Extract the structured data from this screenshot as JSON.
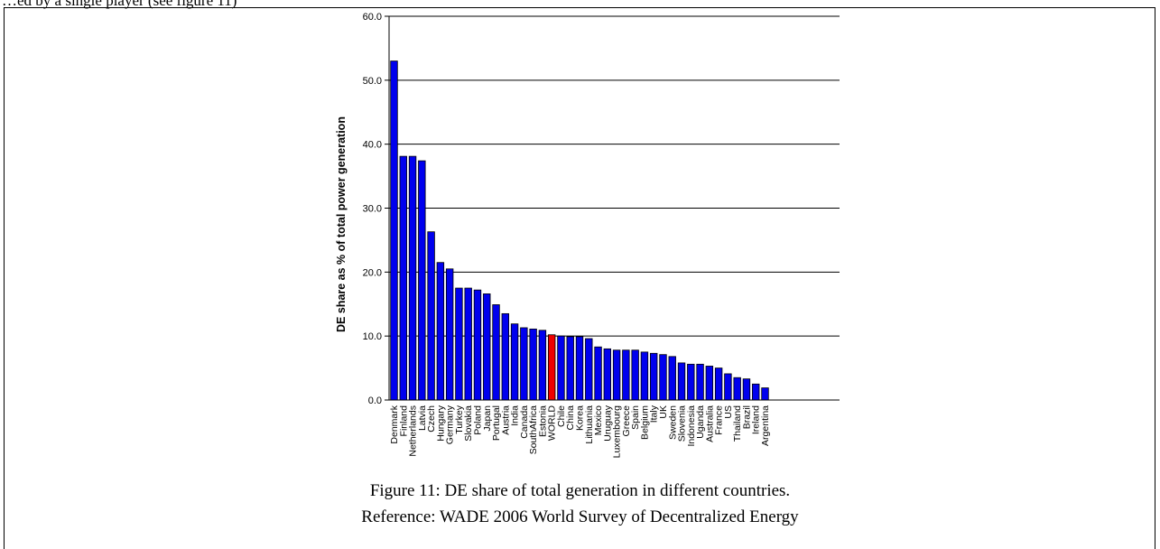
{
  "header_text": "…ed by a single player (see figure 11)",
  "caption": {
    "line1": "Figure 11: DE share of total generation in different countries.",
    "line2": "Reference: WADE 2006 World Survey of Decentralized Energy"
  },
  "chart_data": {
    "type": "bar",
    "title": "",
    "xlabel": "",
    "ylabel": "DE share as % of total power generation",
    "ylim": [
      0,
      60
    ],
    "yticks": [
      0,
      10,
      20,
      30,
      40,
      50,
      60
    ],
    "ytick_labels": [
      "0.0",
      "10.0",
      "20.0",
      "30.0",
      "40.0",
      "50.0",
      "60.0"
    ],
    "grid": true,
    "legend": "none",
    "bar_color": "#0000ee",
    "highlight_color": "#ee0000",
    "highlight_category": "WORLD",
    "categories": [
      "Denmark",
      "Finland",
      "Netherlands",
      "Latvia",
      "Czech",
      "Hungary",
      "Germany",
      "Turkey",
      "Slovakia",
      "Poland",
      "Japan",
      "Portugal",
      "Austria",
      "India",
      "Canada",
      "SouthAfrica",
      "Estonia",
      "WORLD",
      "Chile",
      "China",
      "Korea",
      "Lithuania",
      "Mexico",
      "Uruguay",
      "Luxembourg",
      "Greece",
      "Spain",
      "Belgium",
      "Italy",
      "UK",
      "Sweden",
      "Slovenia",
      "Indonesia",
      "Uganda",
      "Australia",
      "France",
      "US",
      "Thailand",
      "Brazil",
      "Ireland",
      "Argentina"
    ],
    "values": [
      53.0,
      38.1,
      38.1,
      37.4,
      26.3,
      21.5,
      20.5,
      17.5,
      17.5,
      17.2,
      16.6,
      14.9,
      13.5,
      11.9,
      11.3,
      11.1,
      10.9,
      10.2,
      10.0,
      9.9,
      9.9,
      9.6,
      8.3,
      8.0,
      7.8,
      7.8,
      7.8,
      7.5,
      7.3,
      7.1,
      6.8,
      5.8,
      5.6,
      5.6,
      5.3,
      5.0,
      4.1,
      3.5,
      3.3,
      2.5,
      1.9
    ]
  }
}
